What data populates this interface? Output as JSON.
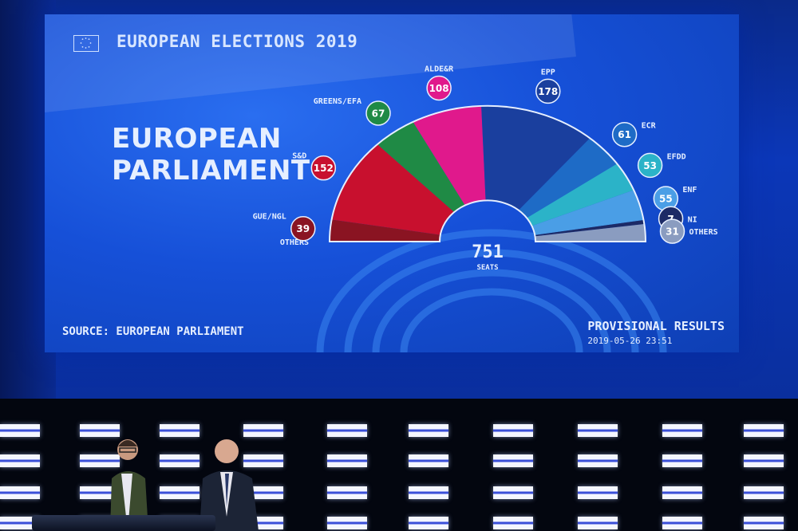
{
  "screen": {
    "header_title": "EUROPEAN ELECTIONS 2019",
    "main_title_line1": "EUROPEAN",
    "main_title_line2": "PARLIAMENT",
    "source": "SOURCE: EUROPEAN PARLIAMENT",
    "status": "PROVISIONAL RESULTS",
    "timestamp": "2019-05-26 23:51",
    "icons": [
      "eu-flag-icon"
    ]
  },
  "chart_data": {
    "type": "pie",
    "subtype": "hemicycle",
    "total": 751,
    "total_label": "SEATS",
    "categories": [
      "OTHERS",
      "GUE/NGL",
      "S&D",
      "GREENS/EFA",
      "ALDE&R",
      "EPP",
      "ECR",
      "EFDD",
      "ENF",
      "NI",
      "OTHERS"
    ],
    "values": [
      0,
      39,
      152,
      67,
      108,
      178,
      61,
      53,
      55,
      7,
      31
    ],
    "colors": [
      "#8a9cc0",
      "#8a1422",
      "#c8102e",
      "#1f8a45",
      "#e0198c",
      "#1a3f9e",
      "#1e6bc6",
      "#2bb3c8",
      "#4a9ee6",
      "#1c2a66",
      "#8a9cc0"
    ]
  },
  "stage": {
    "presenter_1": "presenter",
    "presenter_2": "presenter"
  }
}
